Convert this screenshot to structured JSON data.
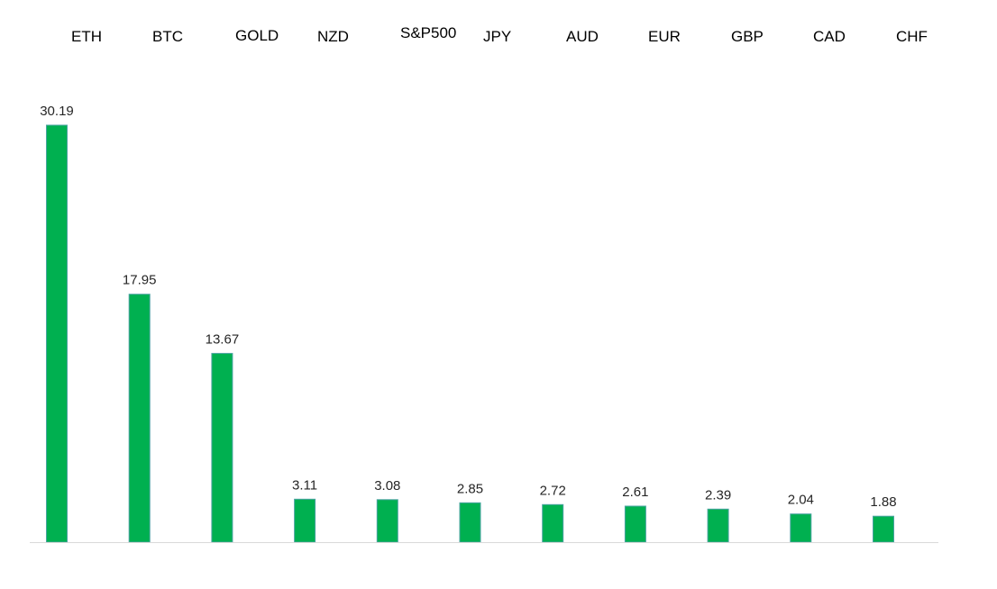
{
  "chart_data": {
    "type": "bar",
    "title": "",
    "xlabel": "",
    "ylabel": "",
    "categories": [
      "ETH",
      "BTC",
      "GOLD",
      "NZD",
      "S&P500",
      "JPY",
      "AUD",
      "EUR",
      "GBP",
      "CAD",
      "CHF"
    ],
    "values": [
      30.19,
      17.95,
      13.67,
      3.11,
      3.08,
      2.85,
      2.72,
      2.61,
      2.39,
      2.04,
      1.88
    ],
    "value_labels": [
      "30.19",
      "17.95",
      "13.67",
      "3.11",
      "3.08",
      "2.85",
      "2.72",
      "2.61",
      "2.39",
      "2.04",
      "1.88"
    ],
    "ylim": [
      0,
      30.19
    ],
    "grid": false,
    "legend": "none",
    "category_labels_position": "top",
    "bar_color": "#00b050",
    "bar_edge_color": "#4aa3a0",
    "axis_color": "#d9d9d9"
  }
}
